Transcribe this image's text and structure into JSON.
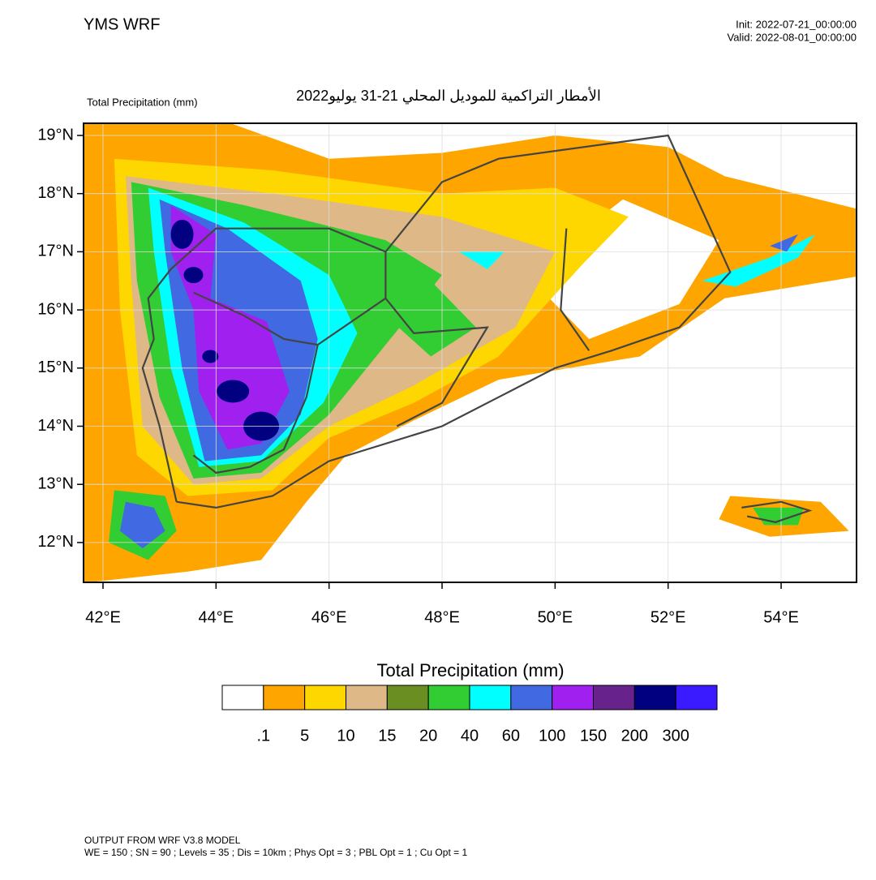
{
  "header": {
    "left": "YMS WRF",
    "init": "Init: 2022-07-21_00:00:00",
    "valid": "Valid: 2022-08-01_00:00:00"
  },
  "map": {
    "field_label": "Total Precipitation   (mm)",
    "title": "الأمطار التراكمية للموديل المحلي 21-31 يوليو2022",
    "lat_labels": [
      "19°N",
      "18°N",
      "17°N",
      "16°N",
      "15°N",
      "14°N",
      "13°N",
      "12°N"
    ],
    "lon_labels": [
      "42°E",
      "44°E",
      "46°E",
      "48°E",
      "50°E",
      "52°E",
      "54°E"
    ]
  },
  "colorbar": {
    "title": "Total Precipitation  (mm)",
    "colors": [
      "#ffffff",
      "#ffa500",
      "#ffd700",
      "#deb887",
      "#6b8e23",
      "#32cd32",
      "#00ffff",
      "#4169e1",
      "#a020f0",
      "#68228b",
      "#000080",
      "#3a1aff"
    ],
    "labels": [
      ".1",
      "5",
      "10",
      "15",
      "20",
      "40",
      "60",
      "100",
      "150",
      "200",
      "300"
    ]
  },
  "footer": {
    "line1": "OUTPUT FROM WRF V3.8 MODEL",
    "line2": "WE = 150 ; SN = 90 ; Levels = 35 ; Dis = 10km ; Phys Opt = 3 ; PBL Opt = 1 ; Cu Opt = 1"
  }
}
